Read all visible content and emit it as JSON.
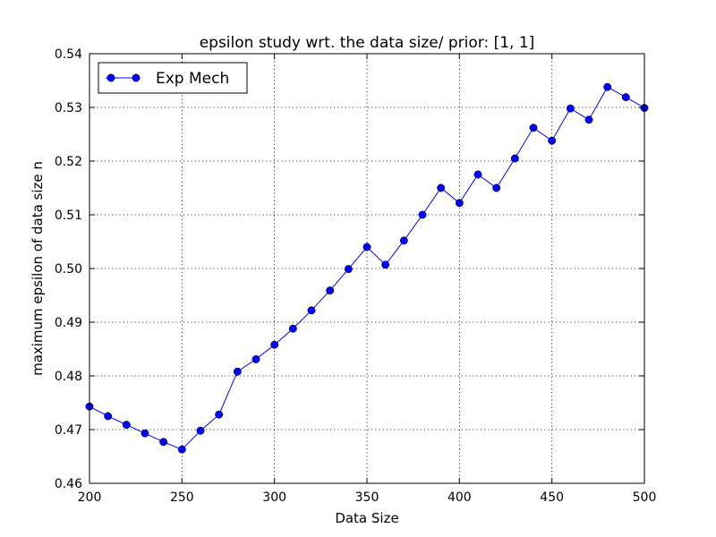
{
  "chart_data": {
    "type": "line",
    "title": "epsilon study wrt. the data size/ prior: [1, 1]",
    "xlabel": "Data Size",
    "ylabel": "maximum epsilon of data size n",
    "xlim": [
      200,
      500
    ],
    "ylim": [
      0.46,
      0.54
    ],
    "xticks": [
      200,
      250,
      300,
      350,
      400,
      450,
      500
    ],
    "xtick_labels": [
      "200",
      "250",
      "300",
      "350",
      "400",
      "450",
      "500"
    ],
    "yticks": [
      0.46,
      0.47,
      0.48,
      0.49,
      0.5,
      0.51,
      0.52,
      0.53,
      0.54
    ],
    "ytick_labels": [
      "0.46",
      "0.47",
      "0.48",
      "0.49",
      "0.50",
      "0.51",
      "0.52",
      "0.53",
      "0.54"
    ],
    "grid": true,
    "legend_position": "top-left",
    "x": [
      200,
      210,
      220,
      230,
      240,
      250,
      260,
      270,
      280,
      290,
      300,
      310,
      320,
      330,
      340,
      350,
      360,
      370,
      380,
      390,
      400,
      410,
      420,
      430,
      440,
      450,
      460,
      470,
      480,
      490,
      500
    ],
    "series": [
      {
        "name": "Exp Mech",
        "color": "#0000ff",
        "marker": "circle",
        "values": [
          0.4743,
          0.4725,
          0.4709,
          0.4693,
          0.4677,
          0.4663,
          0.4698,
          0.4728,
          0.4808,
          0.4831,
          0.4858,
          0.4888,
          0.4922,
          0.4959,
          0.4999,
          0.504,
          0.5007,
          0.5052,
          0.51,
          0.515,
          0.5122,
          0.5175,
          0.515,
          0.5205,
          0.5262,
          0.5238,
          0.5298,
          0.5277,
          0.5338,
          0.5319,
          0.5299
        ]
      }
    ]
  }
}
